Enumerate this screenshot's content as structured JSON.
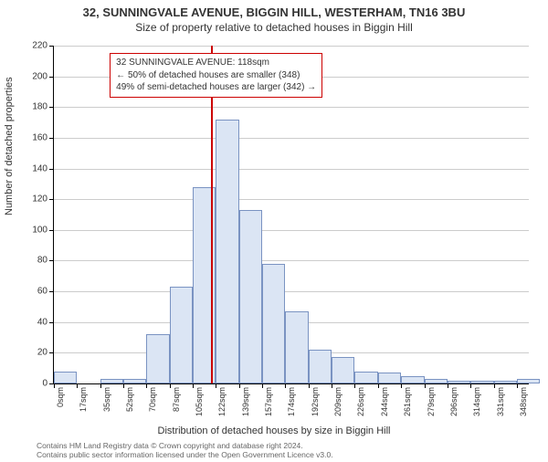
{
  "header": {
    "address": "32, SUNNINGVALE AVENUE, BIGGIN HILL, WESTERHAM, TN16 3BU",
    "subtitle": "Size of property relative to detached houses in Biggin Hill"
  },
  "chart": {
    "type": "histogram",
    "xlabel": "Distribution of detached houses by size in Biggin Hill",
    "ylabel": "Number of detached properties",
    "ylim": [
      0,
      220
    ],
    "ytick_step": 20,
    "yticks": [
      0,
      20,
      40,
      60,
      80,
      100,
      120,
      140,
      160,
      180,
      200,
      220
    ],
    "xlim_sqm": [
      0,
      357
    ],
    "xtick_start": 0,
    "xtick_step_sqm": 17.4,
    "xtick_labels": [
      "0sqm",
      "17sqm",
      "35sqm",
      "52sqm",
      "70sqm",
      "87sqm",
      "105sqm",
      "122sqm",
      "139sqm",
      "157sqm",
      "174sqm",
      "192sqm",
      "209sqm",
      "226sqm",
      "244sqm",
      "261sqm",
      "279sqm",
      "296sqm",
      "314sqm",
      "331sqm",
      "348sqm"
    ],
    "bin_width_sqm": 17.4,
    "bars": [
      8,
      0,
      3,
      3,
      32,
      63,
      128,
      172,
      113,
      78,
      47,
      22,
      17,
      8,
      7,
      5,
      3,
      2,
      2,
      2,
      3
    ],
    "bar_fill": "#dbe5f4",
    "bar_stroke": "#7a93c2",
    "grid_color": "#cccccc",
    "background": "#ffffff",
    "marker": {
      "position_sqm": 118,
      "color": "#cc0000"
    },
    "annotation": {
      "lines": [
        "32 SUNNINGVALE AVENUE: 118sqm",
        "← 50% of detached houses are smaller (348)",
        "49% of semi-detached houses are larger (342) →"
      ],
      "border_color": "#cc0000",
      "bg": "#ffffff",
      "left_sqm": 42,
      "top_value": 215
    }
  },
  "footer": {
    "line1": "Contains HM Land Registry data © Crown copyright and database right 2024.",
    "line2": "Contains public sector information licensed under the Open Government Licence v3.0."
  }
}
